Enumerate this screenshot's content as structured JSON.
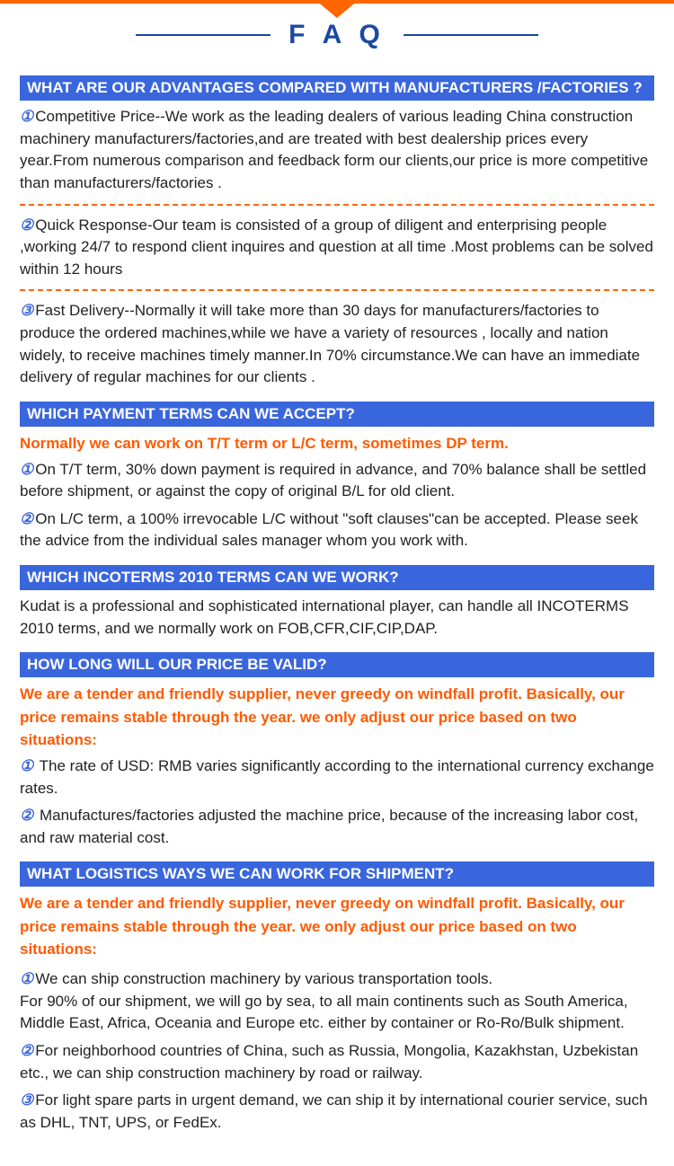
{
  "colors": {
    "orange": "#ff6600",
    "blue_header": "#3a66dd",
    "blue_title": "#194a9f",
    "orange_text": "#ff5a00"
  },
  "title": "F A Q",
  "sections": [
    {
      "question": "WHAT ARE OUR ADVANTAGES COMPARED WITH MANUFACTURERS /FACTORIES ?",
      "intro": "",
      "items": [
        {
          "num": "①",
          "text": "Competitive Price--We work as the leading dealers of various leading China construction machinery manufacturers/factories,and are treated with best dealership prices every year.From numerous comparison and feedback form our clients,our price is more competitive than manufacturers/factories ."
        },
        {
          "num": "②",
          "text": "Quick Response-Our team is consisted of a group of diligent and enterprising people ,working 24/7 to respond client inquires and question at all time .Most problems can be solved within 12 hours"
        },
        {
          "num": "③",
          "text": "Fast Delivery--Normally it will take more than 30 days for manufacturers/factories to produce the ordered machines,while we have a variety of resources , locally and nation widely, to receive machines timely manner.In 70% circumstance.We can have an immediate delivery of regular machines for our clients ."
        }
      ],
      "dashed_between": true
    },
    {
      "question": "WHICH PAYMENT TERMS CAN WE ACCEPT?",
      "intro": "Normally we can work on T/T term or L/C term, sometimes DP term.",
      "items": [
        {
          "num": "①",
          "text": "On T/T term, 30% down payment is required in advance, and 70% balance shall be settled before shipment, or against the copy of original B/L for old client."
        },
        {
          "num": "②",
          "text": "On L/C term, a 100% irrevocable L/C without \"soft clauses\"can be accepted. Please seek the advice from the individual sales manager whom you work with."
        }
      ],
      "dashed_between": false
    },
    {
      "question": "WHICH INCOTERMS 2010 TERMS CAN WE WORK?",
      "intro": "",
      "items": [
        {
          "num": "",
          "text": "Kudat is a professional and sophisticated international player, can handle all INCOTERMS 2010 terms, and we normally work on FOB,CFR,CIF,CIP,DAP."
        }
      ],
      "dashed_between": false
    },
    {
      "question": "HOW LONG WILL OUR PRICE BE VALID?",
      "intro": "We are a tender and friendly supplier, never greedy on windfall profit. Basically, our price remains stable through the year. we only adjust our price based on two situations:",
      "items": [
        {
          "num": "①",
          "text": " The rate of USD: RMB varies significantly according to the international currency exchange rates."
        },
        {
          "num": "②",
          "text": " Manufactures/factories adjusted the machine price, because of the increasing labor cost, and raw material cost."
        }
      ],
      "dashed_between": false
    },
    {
      "question": "WHAT LOGISTICS WAYS WE CAN WORK FOR SHIPMENT?",
      "intro": "We are a tender and friendly supplier, never greedy on windfall profit. Basically, our price remains stable through the year. we only adjust our price based on two situations:",
      "items": [
        {
          "num": "①",
          "text": "We can ship construction machinery by various transportation tools.\n For 90% of our shipment, we will go by sea, to all main continents such as South America, Middle East, Africa, Oceania and Europe etc. either by container or Ro-Ro/Bulk shipment."
        },
        {
          "num": "②",
          "text": "For neighborhood countries of China, such as Russia, Mongolia, Kazakhstan, Uzbekistan etc., we can ship construction machinery by road or railway."
        },
        {
          "num": "③",
          "text": "For light spare parts in urgent demand, we can ship it by international courier service, such as DHL, TNT, UPS, or FedEx."
        }
      ],
      "dashed_between": false,
      "extra_space": true
    }
  ]
}
